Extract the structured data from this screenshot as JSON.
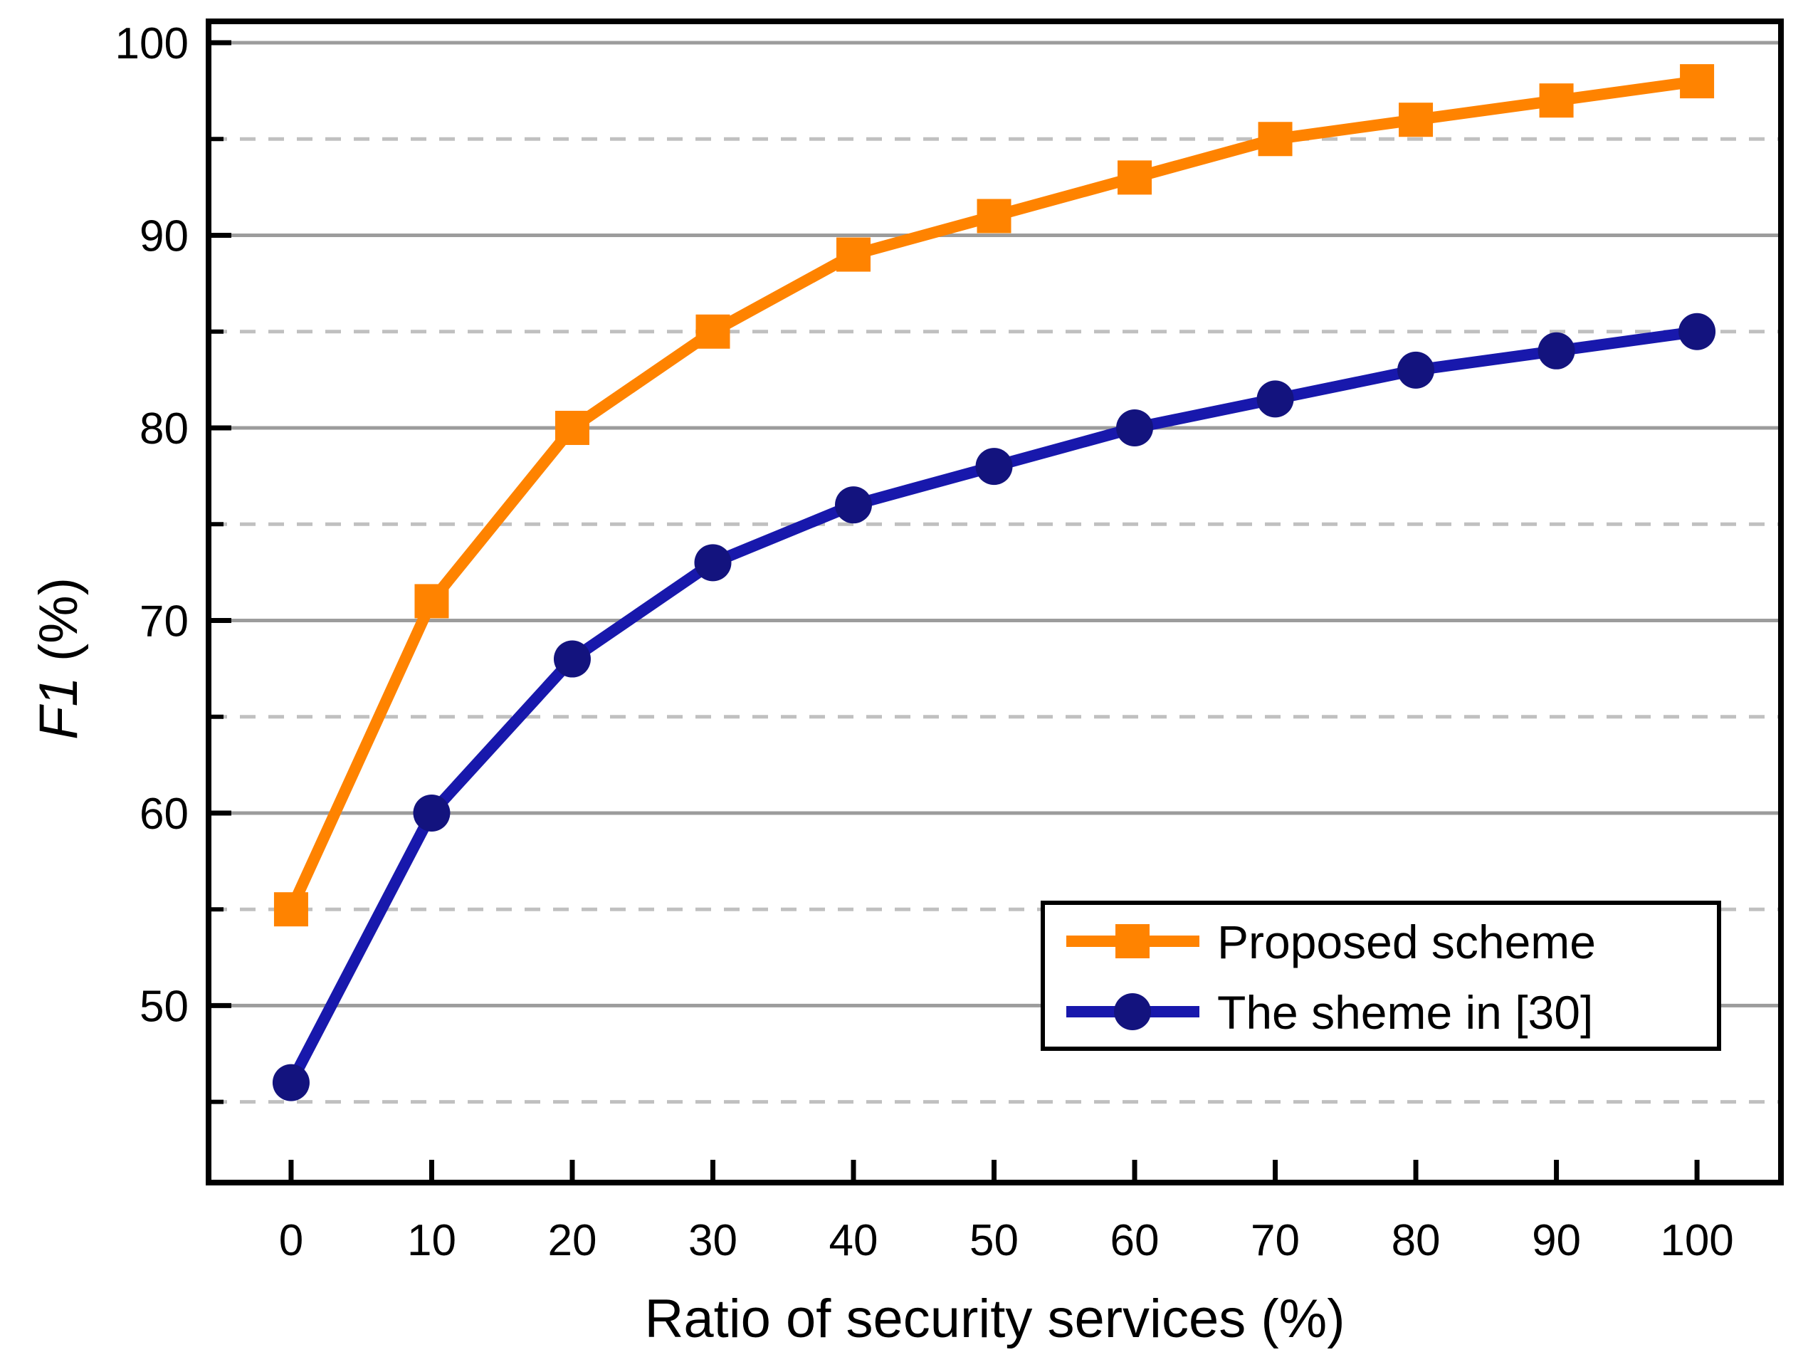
{
  "chart_data": {
    "type": "line",
    "title": "",
    "xlabel": "Ratio of security services (%)",
    "ylabel": "F1 (%)",
    "ylabel_italic_part": "F1",
    "ylabel_regular_part": " (%)",
    "x": [
      0,
      10,
      20,
      30,
      40,
      50,
      60,
      70,
      80,
      90,
      100
    ],
    "series": [
      {
        "name": "Proposed scheme",
        "marker": "square",
        "line_color": "#FF8300",
        "marker_color": "#FF8300",
        "values": [
          55,
          71,
          80,
          85,
          89,
          91,
          93,
          95,
          96,
          97,
          98
        ]
      },
      {
        "name": "The sheme in [30]",
        "marker": "circle",
        "line_color": "#1818AC",
        "marker_color": "#13137E",
        "values": [
          46,
          60,
          68,
          73,
          76,
          78,
          80,
          81.5,
          83,
          84,
          85
        ]
      }
    ],
    "xlim": [
      -5.87,
      105.97
    ],
    "ylim": [
      40.81,
      101.11
    ],
    "x_major_ticks": [
      0,
      10,
      20,
      30,
      40,
      50,
      60,
      70,
      80,
      90,
      100
    ],
    "x_tick_labels": [
      "0",
      "10",
      "20",
      "30",
      "40",
      "50",
      "60",
      "70",
      "80",
      "90",
      "100"
    ],
    "y_major_ticks": [
      50,
      60,
      70,
      80,
      90,
      100
    ],
    "y_tick_labels": [
      "50",
      "60",
      "70",
      "80",
      "90",
      "100"
    ],
    "y_minor_ticks": [
      45,
      55,
      65,
      75,
      85,
      95
    ],
    "grid": {
      "major_style": "solid",
      "major_color": "#9C9C9C",
      "minor_style": "dashed",
      "minor_color": "#C0C0C0"
    },
    "frame_color": "#000000",
    "legend": {
      "position": "bottom-right",
      "entries": [
        "Proposed scheme",
        "The sheme in [30]"
      ]
    }
  }
}
